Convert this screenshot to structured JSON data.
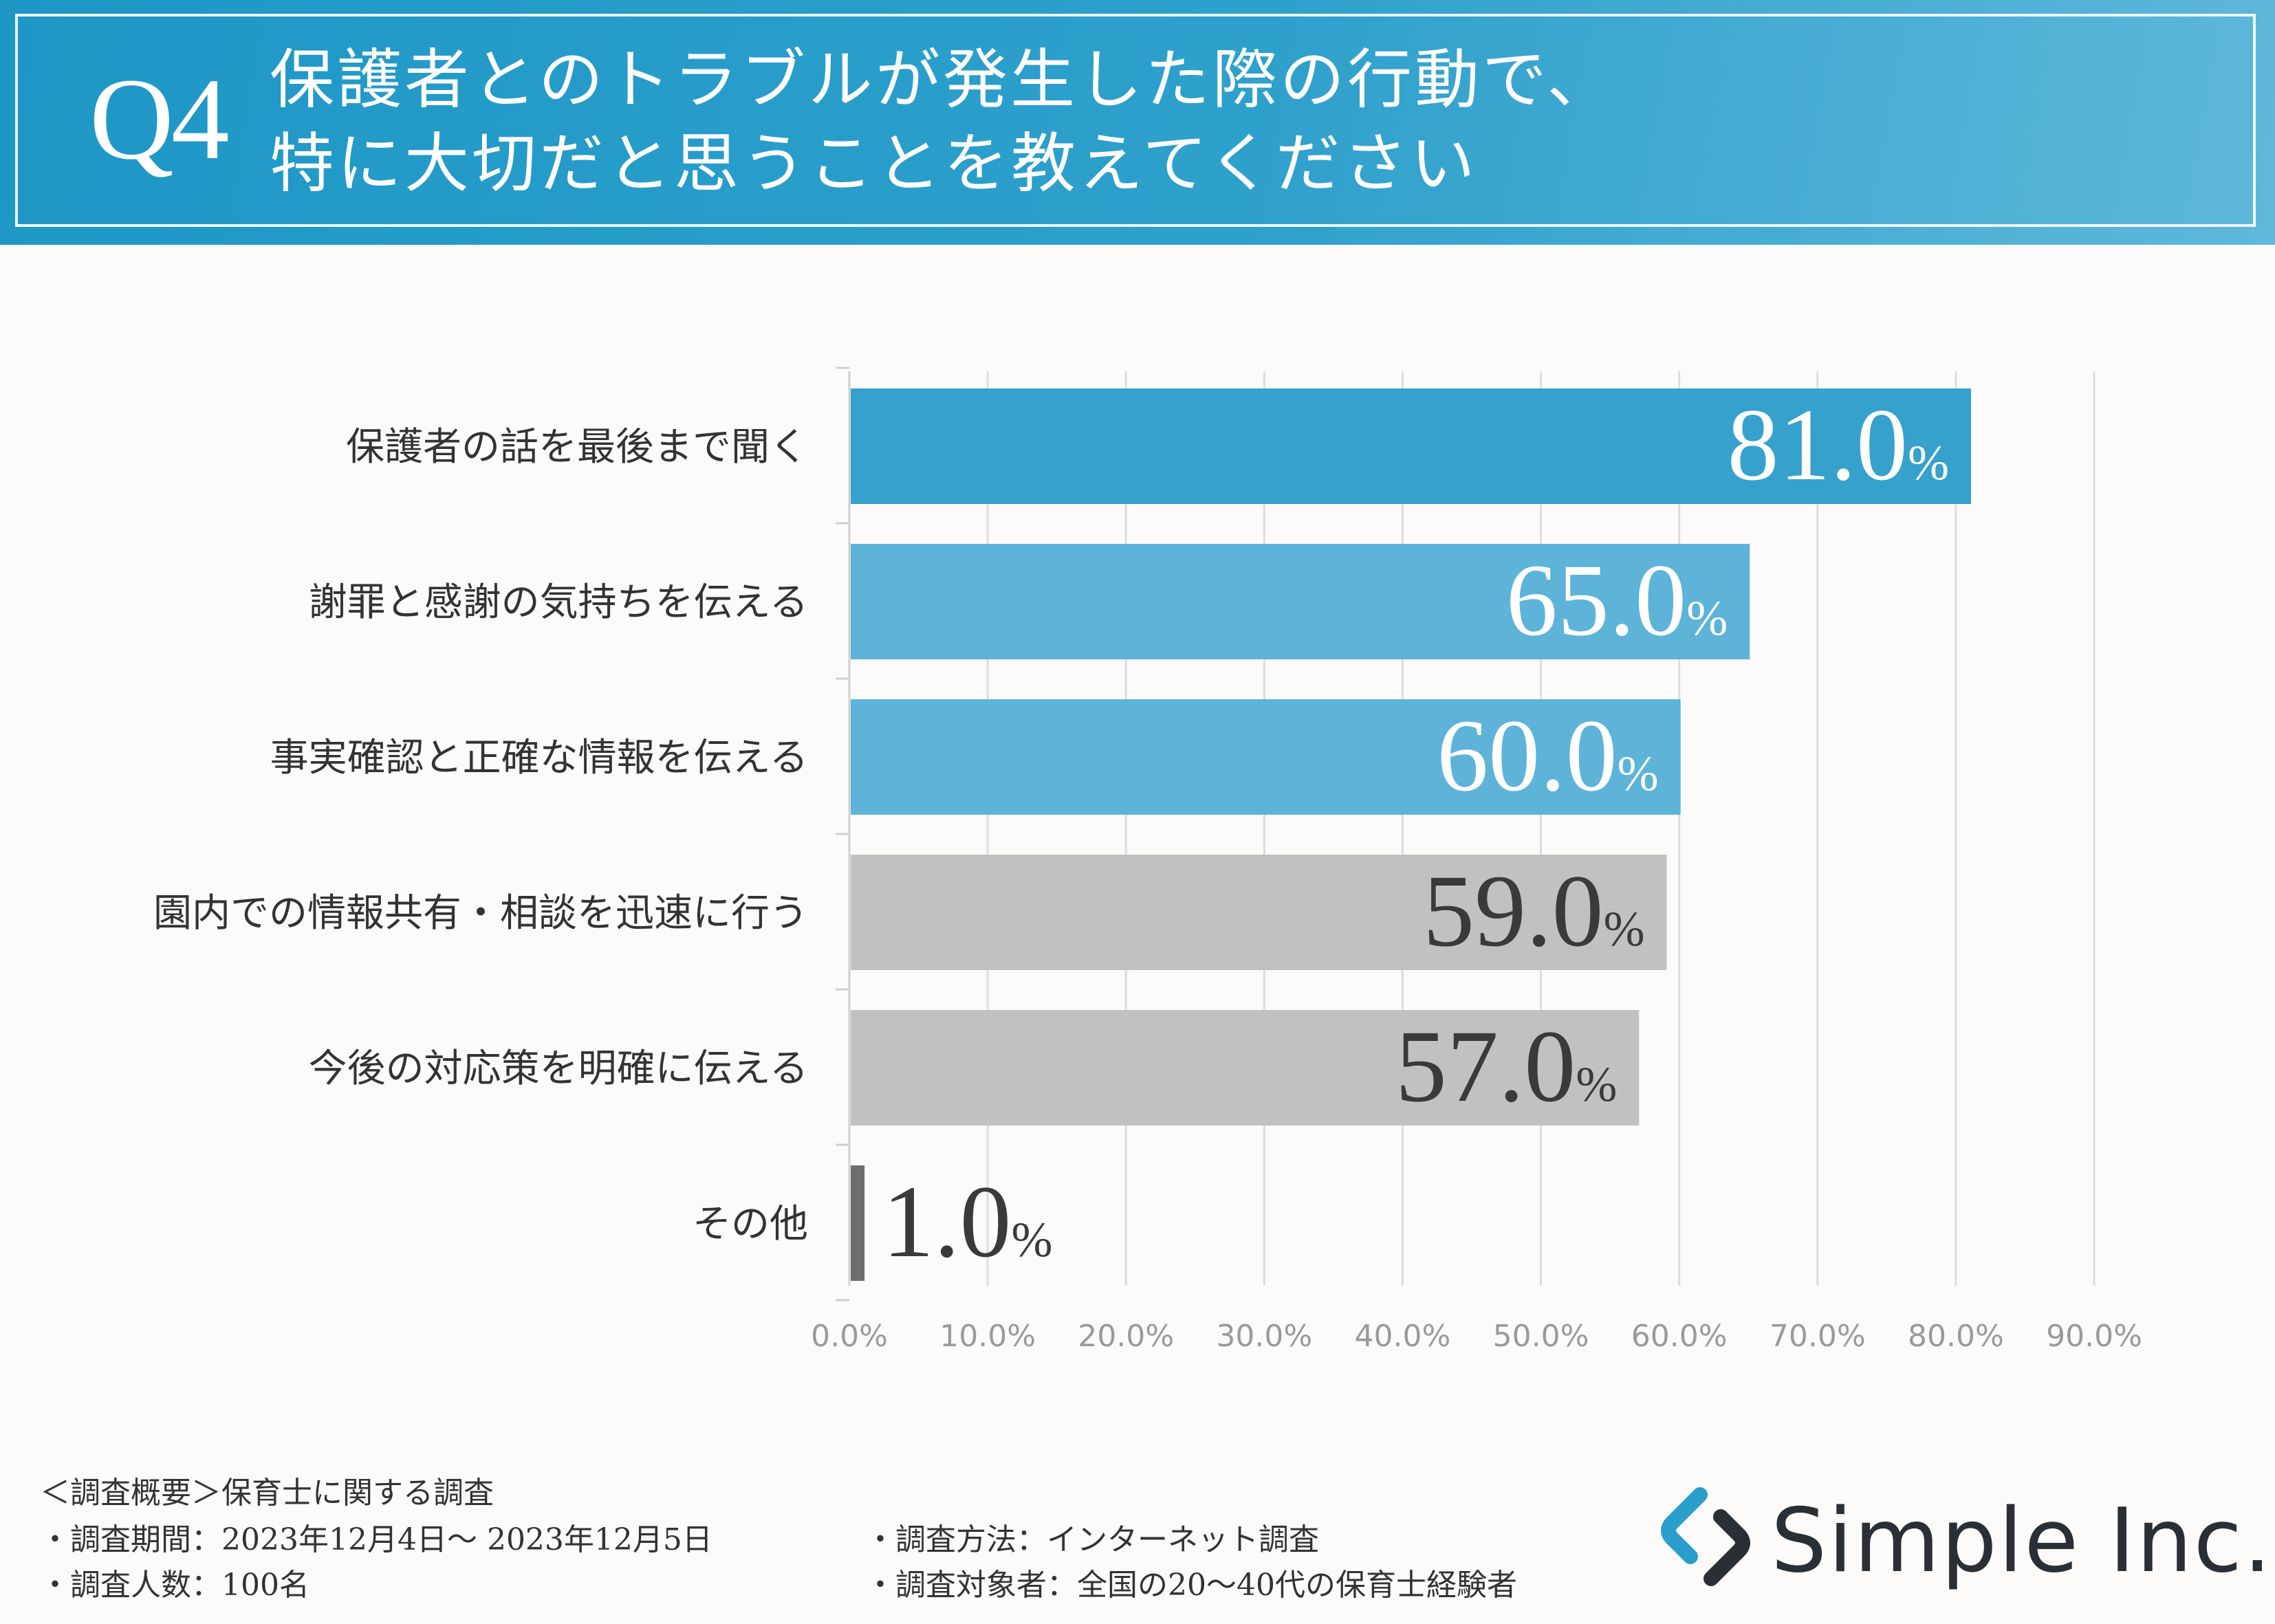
{
  "header": {
    "q_label": "Q4",
    "title_line1": "保護者とのトラブルが発生した際の行動で、",
    "title_line2": "特に大切だと思うことを教えてください"
  },
  "colors": {
    "header_bg": "#2a9ecb",
    "bar_highlight": "#35a1cc",
    "bar_blue": "#5db3d8",
    "bar_gray": "#c1c1c1",
    "bar_other": "#6e6e6e",
    "label_light": "#ffffff",
    "label_dark": "#3a3a3a",
    "grid": "#dddddd",
    "tick": "#9a9a9a"
  },
  "chart_data": {
    "type": "bar",
    "orientation": "horizontal",
    "categories": [
      "保護者の話を最後まで聞く",
      "謝罪と感謝の気持ちを伝える",
      "事実確認と正確な情報を伝える",
      "園内での情報共有・相談を迅速に行う",
      "今後の対応策を明確に伝える",
      "その他"
    ],
    "values": [
      81.0,
      65.0,
      60.0,
      59.0,
      57.0,
      1.0
    ],
    "value_labels": [
      "81.0",
      "65.0",
      "60.0",
      "59.0",
      "57.0",
      "1.0"
    ],
    "value_suffix": "%",
    "bar_styles": [
      "highlight",
      "blue",
      "blue",
      "gray",
      "gray",
      "other"
    ],
    "xlim": [
      0,
      90
    ],
    "xticks": [
      "0.0%",
      "10.0%",
      "20.0%",
      "30.0%",
      "40.0%",
      "50.0%",
      "60.0%",
      "70.0%",
      "80.0%",
      "90.0%"
    ],
    "grid": true,
    "legend": "none"
  },
  "footer": {
    "overview": "＜調査概要＞保育士に関する調査",
    "period": "・調査期間：2023年12月4日～ 2023年12月5日",
    "count": "・調査人数：100名",
    "method": "・調査方法：インターネット調査",
    "target": "・調査対象者：全国の20～40代の保育士経験者"
  },
  "logo": {
    "text": "Simple Inc.",
    "icon": "simple-logo-icon"
  }
}
